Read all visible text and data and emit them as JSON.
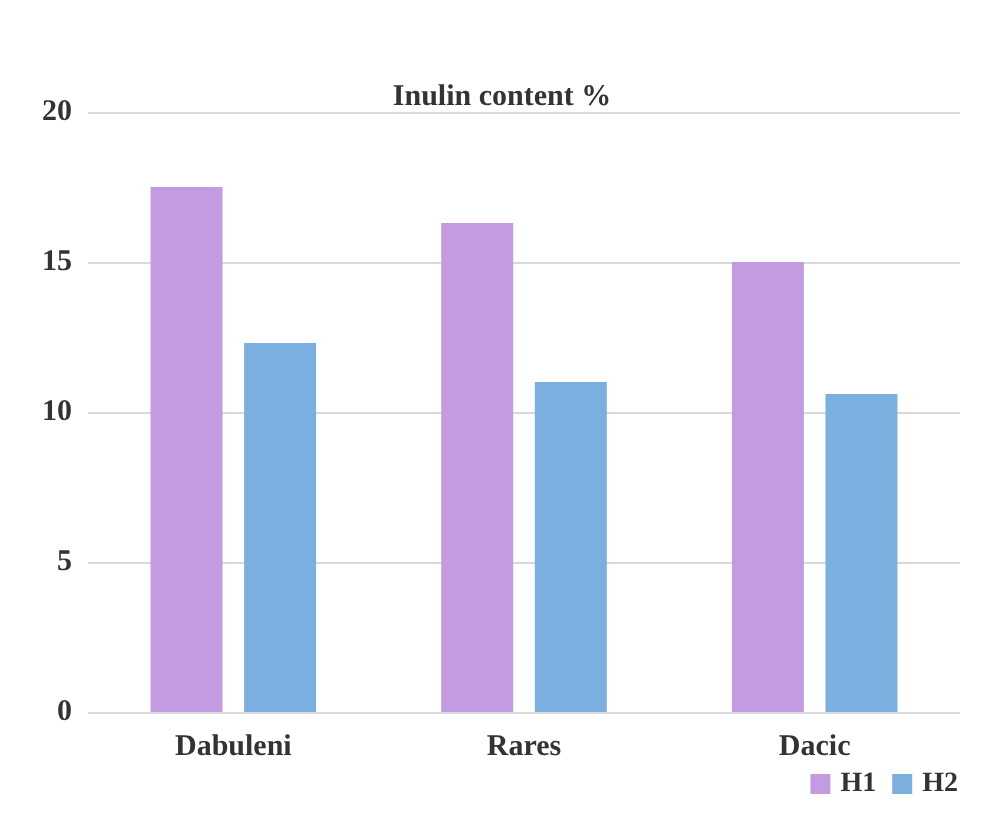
{
  "chart_data": {
    "type": "bar",
    "title": "Inulin content %",
    "categories": [
      "Dabuleni",
      "Rares",
      "Dacic"
    ],
    "series": [
      {
        "name": "H1",
        "color": "#c39be0",
        "values": [
          17.5,
          16.3,
          15.0
        ]
      },
      {
        "name": "H2",
        "color": "#7aafdf",
        "values": [
          12.3,
          11.0,
          10.6
        ]
      }
    ],
    "ylim": [
      0,
      20
    ],
    "yticks": [
      0,
      5,
      10,
      15,
      20
    ],
    "grid": "y",
    "legend": "bottom right"
  }
}
